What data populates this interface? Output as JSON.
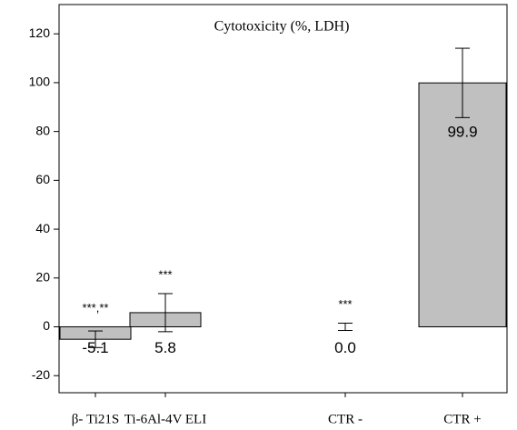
{
  "chart_data": {
    "type": "bar",
    "title": "Cytotoxicity (%, LDH)",
    "categories": [
      "β- Ti21S",
      "Ti-6Al-4V ELI",
      "CTR -",
      "CTR +"
    ],
    "values": [
      -5.1,
      5.8,
      0.0,
      99.9
    ],
    "value_labels": [
      "-5.1",
      "5.8",
      "0.0",
      "99.9"
    ],
    "errors": [
      3.4,
      7.8,
      1.5,
      14.2
    ],
    "annotations": [
      "***,**",
      "***",
      "***",
      null
    ],
    "color": "#c0c0c0",
    "ylim": [
      -27,
      132
    ],
    "yticks": [
      -20,
      0,
      20,
      40,
      60,
      80,
      100,
      120
    ]
  }
}
